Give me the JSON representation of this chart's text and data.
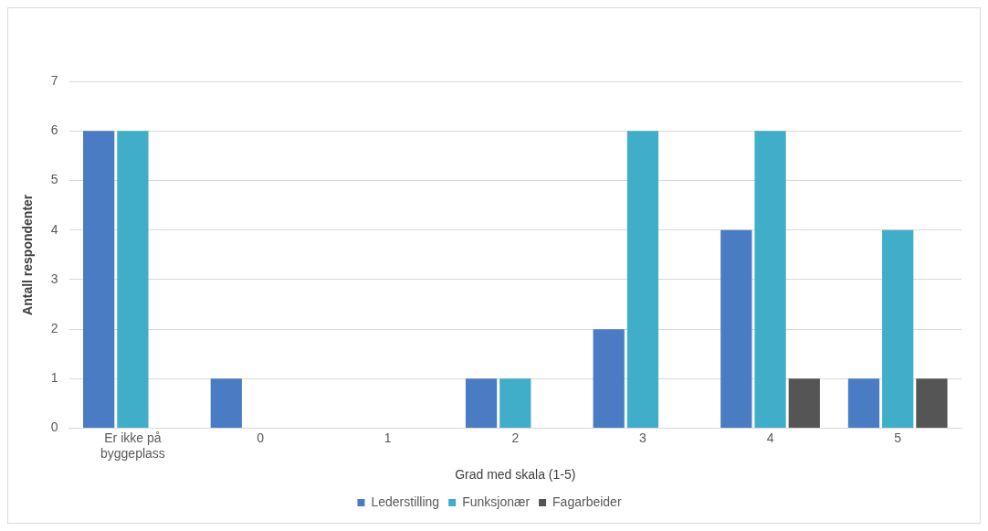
{
  "chart_data": {
    "type": "bar",
    "xlabel": "Grad med skala (1-5)",
    "ylabel": "Antall respondenter",
    "categories": [
      "Er ikke på byggeplass",
      "0",
      "1",
      "2",
      "3",
      "4",
      "5"
    ],
    "series": [
      {
        "name": "Lederstilling",
        "color": "#4a7cc4",
        "values": [
          6,
          1,
          0,
          1,
          2,
          4,
          1
        ]
      },
      {
        "name": "Funksjonær",
        "color": "#41aec9",
        "values": [
          6,
          0,
          0,
          1,
          6,
          6,
          4
        ]
      },
      {
        "name": "Fagarbeider",
        "color": "#555555",
        "values": [
          0,
          0,
          0,
          0,
          0,
          1,
          1
        ]
      }
    ],
    "ylim": [
      0,
      7
    ],
    "yticks": [
      0,
      1,
      2,
      3,
      4,
      5,
      6,
      7
    ],
    "grid": "y",
    "legend": "bottom"
  }
}
